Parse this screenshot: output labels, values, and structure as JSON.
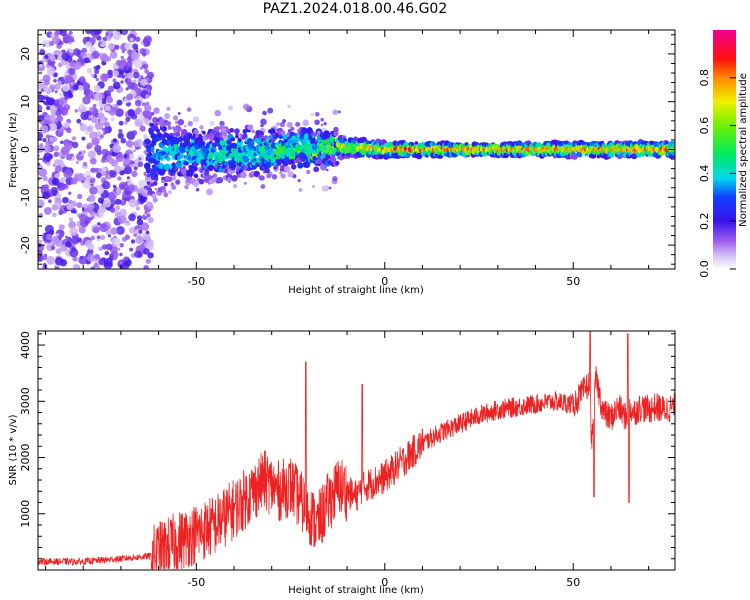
{
  "page": {
    "title": "PAZ1.2024.018.00.46.G02"
  },
  "chart_data": [
    {
      "type": "heatmap",
      "xlabel": "Height of straight line (km)",
      "ylabel": "Frequency (Hz)",
      "xlim": [
        -92,
        77
      ],
      "ylim": [
        -25,
        25
      ],
      "xticks": [
        -50,
        0,
        50
      ],
      "yticks": [
        -20,
        -10,
        0,
        10,
        20
      ],
      "colorbar": {
        "label": "Normalized spectral amplitude",
        "range": [
          0.0,
          1.0
        ],
        "ticks": [
          0.0,
          0.2,
          0.4,
          0.6,
          0.8
        ],
        "colormap": "rainbow (purple-blue-cyan-green-yellow-red-magenta)"
      },
      "description_points": [
        {
          "x": -80,
          "y": 0,
          "amp": 0.15,
          "spread_hz": 25
        },
        {
          "x": -55,
          "y": -1,
          "amp": 0.45,
          "spread_hz": 5
        },
        {
          "x": -40,
          "y": -1,
          "amp": 0.5,
          "spread_hz": 5
        },
        {
          "x": -25,
          "y": 0,
          "amp": 0.55,
          "spread_hz": 4
        },
        {
          "x": -10,
          "y": 0.5,
          "amp": 0.7,
          "spread_hz": 2
        },
        {
          "x": 0,
          "y": 0,
          "amp": 0.9,
          "spread_hz": 1.5
        },
        {
          "x": 25,
          "y": 0,
          "amp": 0.9,
          "spread_hz": 1.2
        },
        {
          "x": 50,
          "y": 0,
          "amp": 0.85,
          "spread_hz": 1.5
        },
        {
          "x": 75,
          "y": 0,
          "amp": 0.9,
          "spread_hz": 1.5
        }
      ]
    },
    {
      "type": "line",
      "xlabel": "Height of straight line (km)",
      "ylabel": "SNR (10 * v/v)",
      "xlim": [
        -92,
        77
      ],
      "ylim": [
        0,
        4250
      ],
      "xticks": [
        -50,
        0,
        50
      ],
      "yticks": [
        1000,
        2000,
        3000,
        4000
      ],
      "series": [
        {
          "color": "#ee2222",
          "x": [
            -92,
            -80,
            -70,
            -62,
            -55,
            -45,
            -38,
            -32,
            -28,
            -25,
            -22,
            -20,
            -18,
            -15,
            -12,
            -8,
            -5,
            0,
            5,
            10,
            15,
            20,
            25,
            30,
            35,
            40,
            45,
            50,
            52,
            54,
            55,
            56,
            58,
            60,
            62,
            64,
            65,
            66,
            68,
            70,
            72,
            74,
            77
          ],
          "y": [
            150,
            150,
            200,
            250,
            500,
            800,
            1200,
            1600,
            1400,
            1500,
            1200,
            1000,
            800,
            1200,
            1500,
            1300,
            1500,
            1650,
            1950,
            2250,
            2450,
            2600,
            2750,
            2850,
            2900,
            2950,
            3000,
            2950,
            3100,
            3300,
            2300,
            3400,
            2800,
            2700,
            2900,
            2700,
            2900,
            2800,
            2900,
            2850,
            2900,
            2850,
            2900
          ]
        }
      ],
      "spikes": [
        {
          "x": -21,
          "y": 3700
        },
        {
          "x": -6,
          "y": 3300
        },
        {
          "x": 54.5,
          "y": 4250
        },
        {
          "x": 55.5,
          "y": 1300
        },
        {
          "x": 64.5,
          "y": 4200
        },
        {
          "x": 64.8,
          "y": 1200
        }
      ]
    }
  ]
}
